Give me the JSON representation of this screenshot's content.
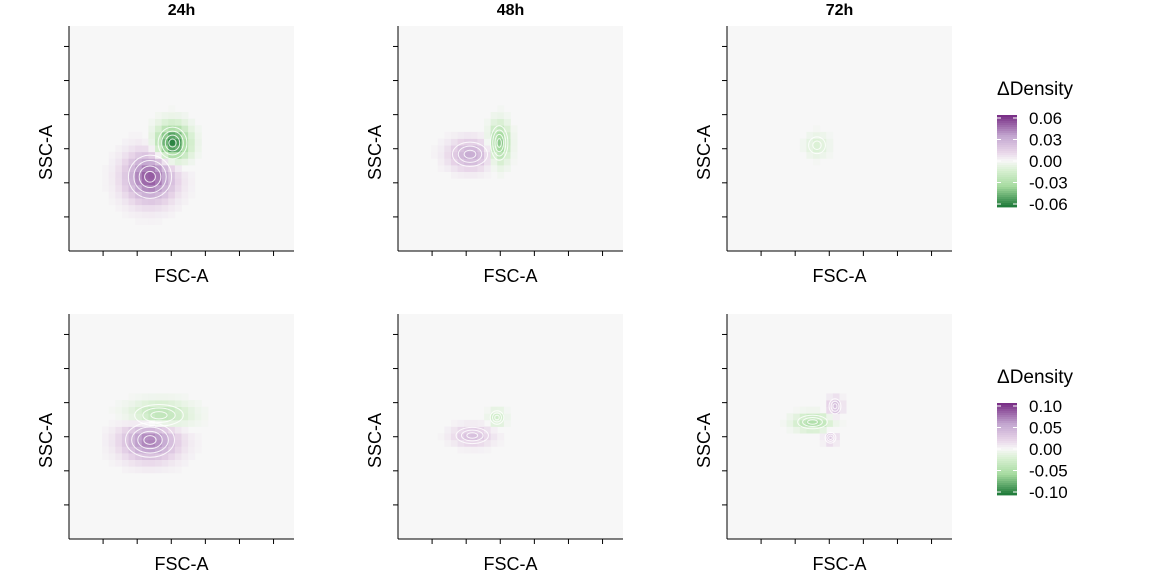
{
  "colors": {
    "panel_background": "#f7f7f7",
    "positive_strong": "#762a83",
    "positive_mid": "#c2a5cf",
    "positive_light": "#e7d4e8",
    "neutral": "#f7f7f7",
    "negative_light": "#d9f0d3",
    "negative_mid": "#a6dba0",
    "negative_strong": "#1b7837",
    "contour": "#ffffff"
  },
  "chart_data": [
    {
      "type": "heatmap",
      "column_title": "24h",
      "xlabel": "FSC-A",
      "ylabel": "SSC-A",
      "grid": false,
      "color_scale": "diverging purple-green",
      "blobs": [
        {
          "x": 0.36,
          "y": 0.33,
          "sx": 0.075,
          "sy": 0.075,
          "value": 0.05
        },
        {
          "x": 0.46,
          "y": 0.48,
          "sx": 0.05,
          "sy": 0.055,
          "value": -0.06
        }
      ]
    },
    {
      "type": "heatmap",
      "column_title": "48h",
      "xlabel": "FSC-A",
      "ylabel": "SSC-A",
      "grid": false,
      "color_scale": "diverging purple-green",
      "blobs": [
        {
          "x": 0.32,
          "y": 0.43,
          "sx": 0.065,
          "sy": 0.045,
          "value": 0.03
        },
        {
          "x": 0.45,
          "y": 0.48,
          "sx": 0.03,
          "sy": 0.06,
          "value": -0.04
        }
      ]
    },
    {
      "type": "heatmap",
      "column_title": "72h",
      "xlabel": "FSC-A",
      "ylabel": "SSC-A",
      "grid": false,
      "color_scale": "diverging purple-green",
      "blobs": [
        {
          "x": 0.4,
          "y": 0.47,
          "sx": 0.035,
          "sy": 0.035,
          "value": -0.012
        }
      ]
    },
    {
      "type": "heatmap",
      "column_title": "",
      "xlabel": "FSC-A",
      "ylabel": "SSC-A",
      "grid": false,
      "color_scale": "diverging purple-green",
      "blobs": [
        {
          "x": 0.36,
          "y": 0.44,
          "sx": 0.085,
          "sy": 0.06,
          "value": 0.07
        },
        {
          "x": 0.4,
          "y": 0.55,
          "sx": 0.09,
          "sy": 0.04,
          "value": -0.05
        }
      ]
    },
    {
      "type": "heatmap",
      "column_title": "",
      "xlabel": "FSC-A",
      "ylabel": "SSC-A",
      "grid": false,
      "color_scale": "diverging purple-green",
      "blobs": [
        {
          "x": 0.33,
          "y": 0.46,
          "sx": 0.06,
          "sy": 0.03,
          "value": 0.035
        },
        {
          "x": 0.44,
          "y": 0.54,
          "sx": 0.025,
          "sy": 0.025,
          "value": -0.03
        }
      ]
    },
    {
      "type": "heatmap",
      "column_title": "",
      "xlabel": "FSC-A",
      "ylabel": "SSC-A",
      "grid": false,
      "color_scale": "diverging purple-green",
      "blobs": [
        {
          "x": 0.38,
          "y": 0.52,
          "sx": 0.055,
          "sy": 0.025,
          "value": -0.05
        },
        {
          "x": 0.48,
          "y": 0.59,
          "sx": 0.022,
          "sy": 0.028,
          "value": 0.04
        },
        {
          "x": 0.46,
          "y": 0.45,
          "sx": 0.02,
          "sy": 0.02,
          "value": 0.03
        }
      ]
    }
  ],
  "legends": [
    {
      "title": "ΔDensity",
      "limit": 0.06,
      "ticks": [
        {
          "value": 0.06,
          "label": "0.06"
        },
        {
          "value": 0.03,
          "label": "0.03"
        },
        {
          "value": 0.0,
          "label": "0.00"
        },
        {
          "value": -0.03,
          "label": "-0.03"
        },
        {
          "value": -0.06,
          "label": "-0.06"
        }
      ]
    },
    {
      "title": "ΔDensity",
      "limit": 0.1,
      "ticks": [
        {
          "value": 0.1,
          "label": "0.10"
        },
        {
          "value": 0.05,
          "label": "0.05"
        },
        {
          "value": 0.0,
          "label": "0.00"
        },
        {
          "value": -0.05,
          "label": "-0.05"
        },
        {
          "value": -0.1,
          "label": "-0.10"
        }
      ]
    }
  ]
}
